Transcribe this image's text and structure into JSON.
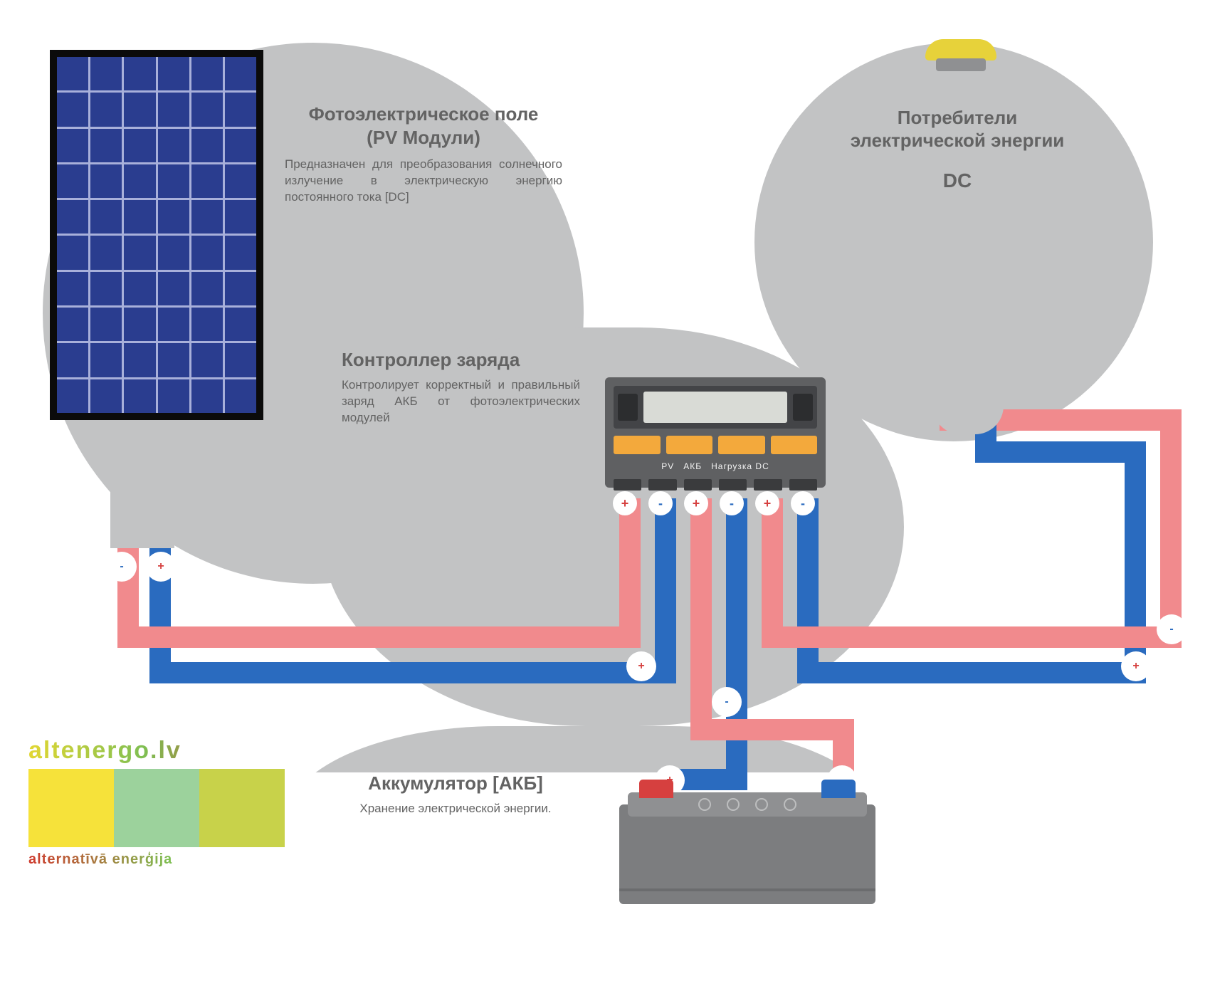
{
  "diagram": {
    "type": "infographic",
    "background_color": "#ffffff",
    "bubble_color": "#c2c3c4",
    "wire_pos_color": "#2a6bbf",
    "wire_neg_color": "#f18a8d",
    "wire_width": 30,
    "text_color": "#636363",
    "title_fontsize": 26,
    "desc_fontsize": 17,
    "terminal_size": 42,
    "terminal_border": "#9a9a9a"
  },
  "modules": {
    "pv": {
      "title1": "Фотоэлектрическое поле",
      "title2": "(PV Модули)",
      "desc": "Предназначен для преобразования солнечного излучение в электрическую энергию постоянного тока [DC]",
      "panel": {
        "cols": 6,
        "rows": 10,
        "frame_color": "#0b0b0b",
        "cell_color": "#2a3d8f",
        "line_color": "#a8b0da"
      }
    },
    "controller": {
      "title": "Контроллер заряда",
      "desc": "Контролирует корректный и правильный заряд АКБ от фотоэлектрических модулей",
      "device": {
        "body": "#5f6062",
        "face": "#434447",
        "buttons": "#f3a93c",
        "labels": "PV   АКБ   Нагрузка DC"
      }
    },
    "load": {
      "title1": "Потребители",
      "title2": "электрической энергии",
      "title3": "DC",
      "lamp_base": "#a0a1a3",
      "lamp_bulb": "#e7d23a"
    },
    "battery": {
      "title": "Аккумулятор [АКБ]",
      "desc": "Хранение электрической энергии.",
      "body": "#7c7d7f",
      "top": "#8f9092",
      "cap_pos": "#d6403f",
      "cap_neg": "#2a6bbf"
    }
  },
  "logo": {
    "top_text": "altenergo.lv",
    "bars": [
      {
        "color": "#f6e23a"
      },
      {
        "color": "#9cd29c"
      },
      {
        "color": "#c8d24a"
      }
    ],
    "bottom_text": "alternatīvā enerģija"
  },
  "terminals": {
    "plus": "+",
    "minus": "-"
  }
}
